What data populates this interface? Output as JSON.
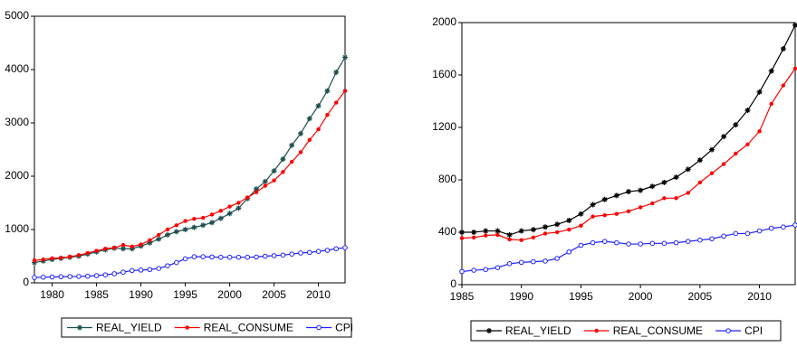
{
  "chart_data": [
    {
      "type": "line",
      "xlim": [
        1978,
        2013
      ],
      "xticks": [
        1980,
        1985,
        1990,
        1995,
        2000,
        2005,
        2010
      ],
      "ylim": [
        0,
        5000
      ],
      "yticks": [
        0,
        1000,
        2000,
        3000,
        4000,
        5000
      ],
      "x": [
        1978,
        1979,
        1980,
        1981,
        1982,
        1983,
        1984,
        1985,
        1986,
        1987,
        1988,
        1989,
        1990,
        1991,
        1992,
        1993,
        1994,
        1995,
        1996,
        1997,
        1998,
        1999,
        2000,
        2001,
        2002,
        2003,
        2004,
        2005,
        2006,
        2007,
        2008,
        2009,
        2010,
        2011,
        2012,
        2013
      ],
      "series": [
        {
          "name": "REAL_YIELD",
          "color": "#1f4f4f",
          "marker": "star",
          "values": [
            380,
            410,
            440,
            460,
            480,
            500,
            540,
            580,
            620,
            650,
            640,
            640,
            690,
            750,
            820,
            900,
            960,
            1000,
            1040,
            1080,
            1130,
            1210,
            1300,
            1400,
            1580,
            1760,
            1900,
            2100,
            2320,
            2580,
            2800,
            3080,
            3320,
            3600,
            3950,
            4230
          ]
        },
        {
          "name": "REAL_CONSUME",
          "color": "#ff0000",
          "marker": "dot",
          "values": [
            420,
            440,
            460,
            470,
            490,
            520,
            560,
            600,
            640,
            660,
            710,
            680,
            720,
            800,
            900,
            1000,
            1080,
            1160,
            1200,
            1220,
            1280,
            1350,
            1430,
            1500,
            1600,
            1700,
            1820,
            1920,
            2080,
            2270,
            2450,
            2680,
            2880,
            3150,
            3380,
            3600
          ]
        },
        {
          "name": "CPI",
          "color": "#2020ff",
          "marker": "circle",
          "values": [
            100,
            105,
            110,
            115,
            118,
            120,
            125,
            135,
            150,
            170,
            200,
            230,
            240,
            250,
            270,
            320,
            380,
            450,
            490,
            490,
            485,
            480,
            480,
            480,
            480,
            485,
            500,
            510,
            520,
            540,
            560,
            570,
            590,
            610,
            640,
            660
          ]
        }
      ]
    },
    {
      "type": "line",
      "xlim": [
        1985,
        2013
      ],
      "xticks": [
        1985,
        1990,
        1995,
        2000,
        2005,
        2010
      ],
      "ylim": [
        0,
        2000
      ],
      "yticks": [
        0,
        400,
        800,
        1200,
        1600,
        2000
      ],
      "x": [
        1985,
        1986,
        1987,
        1988,
        1989,
        1990,
        1991,
        1992,
        1993,
        1994,
        1995,
        1996,
        1997,
        1998,
        1999,
        2000,
        2001,
        2002,
        2003,
        2004,
        2005,
        2006,
        2007,
        2008,
        2009,
        2010,
        2011,
        2012,
        2013
      ],
      "series": [
        {
          "name": "REAL_YIELD",
          "color": "#000000",
          "marker": "star",
          "values": [
            400,
            400,
            410,
            410,
            380,
            410,
            420,
            440,
            460,
            490,
            540,
            610,
            650,
            680,
            710,
            720,
            750,
            780,
            820,
            880,
            950,
            1030,
            1130,
            1220,
            1330,
            1470,
            1630,
            1800,
            1980
          ]
        },
        {
          "name": "REAL_CONSUME",
          "color": "#ff0000",
          "marker": "dot",
          "values": [
            355,
            360,
            375,
            380,
            345,
            340,
            360,
            390,
            400,
            420,
            450,
            520,
            530,
            540,
            560,
            590,
            620,
            660,
            660,
            700,
            780,
            850,
            920,
            1000,
            1070,
            1170,
            1380,
            1520,
            1650
          ]
        },
        {
          "name": "CPI",
          "color": "#2020ff",
          "marker": "circle",
          "values": [
            100,
            110,
            115,
            130,
            160,
            170,
            175,
            180,
            200,
            250,
            300,
            320,
            330,
            320,
            310,
            310,
            315,
            315,
            320,
            330,
            340,
            350,
            370,
            390,
            390,
            410,
            430,
            440,
            455
          ]
        }
      ]
    }
  ]
}
